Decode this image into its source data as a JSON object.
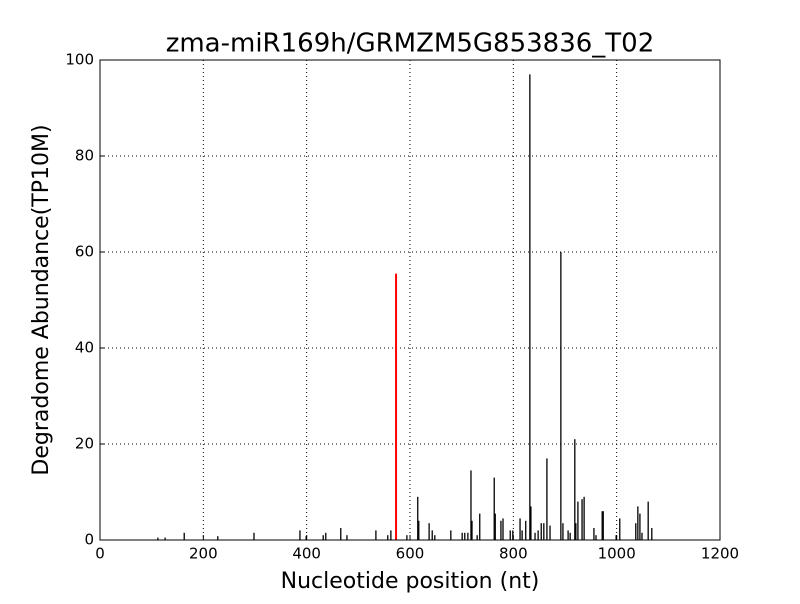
{
  "chart_data": {
    "type": "stem",
    "title": "zma-miR169h/GRMZM5G853836_T02",
    "xlabel": "Nucleotide position (nt)",
    "ylabel": "Degradome Abundance(TP10M)",
    "xlim": [
      0,
      1200
    ],
    "xticks": [
      0,
      200,
      400,
      600,
      800,
      1000,
      1200
    ],
    "ylim": [
      0,
      100
    ],
    "yticks": [
      0,
      20,
      40,
      60,
      80,
      100
    ],
    "grid": true,
    "color": "#000000",
    "x": [
      112,
      126,
      163,
      228,
      298,
      387,
      399,
      432,
      437,
      466,
      478,
      534,
      557,
      563,
      594,
      615,
      617,
      637,
      643,
      648,
      679,
      701,
      706,
      712,
      718,
      720,
      730,
      735,
      763,
      765,
      776,
      780,
      794,
      799,
      813,
      817,
      824,
      832,
      834,
      842,
      848,
      854,
      859,
      865,
      871,
      892,
      896,
      906,
      910,
      919,
      921,
      925,
      933,
      937,
      956,
      960,
      972,
      974,
      999,
      1006,
      1037,
      1041,
      1045,
      1049,
      1061,
      1068
    ],
    "values": [
      0.5,
      0.5,
      1.5,
      0.8,
      1.5,
      2,
      0.8,
      1,
      1.5,
      2.5,
      1,
      2,
      1,
      2,
      1,
      9,
      4,
      3.5,
      2,
      1,
      2,
      1.5,
      1.5,
      1.5,
      14.5,
      4,
      1,
      5.5,
      13,
      5.5,
      4,
      4.5,
      2,
      2,
      4.5,
      2,
      4,
      97,
      7,
      1.5,
      2,
      3.5,
      3.5,
      17,
      3,
      60,
      3.5,
      2,
      1.5,
      21,
      3.5,
      8,
      8.5,
      9,
      2.5,
      1,
      6,
      6,
      1,
      4.5,
      3.5,
      7,
      5.5,
      1.5,
      8,
      2.5
    ],
    "highlight": {
      "x": 573,
      "value": 55.5,
      "color": "#ff0000"
    }
  }
}
